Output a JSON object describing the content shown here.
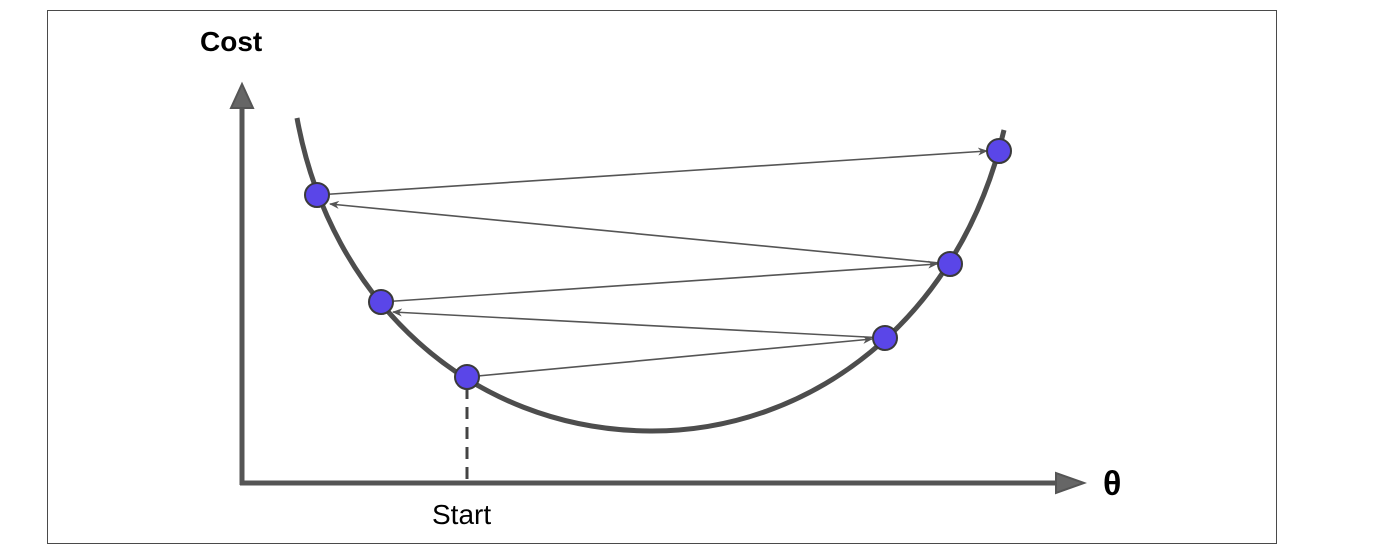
{
  "diagram": {
    "y_axis_label": "Cost",
    "x_axis_label": "θ",
    "start_label": "Start",
    "colors": {
      "axis": "#555555",
      "curve": "#4d4d4d",
      "arrow": "#555555",
      "point_fill": "#5a46e8",
      "point_stroke": "#3a3a3a",
      "background": "#ffffff"
    },
    "steps": 5
  }
}
